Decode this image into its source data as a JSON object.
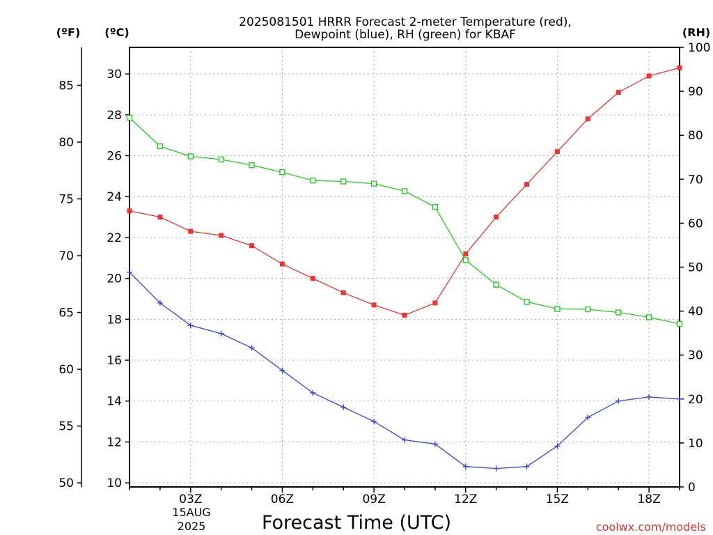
{
  "chart_data": {
    "type": "line",
    "title_line1": "2025081501 HRRR Forecast 2-meter Temperature (red),",
    "title_line2": "Dewpoint (blue), RH (green) for KBAF",
    "xlabel": "Forecast Time (UTC)",
    "left_outer_unit": "(ºF)",
    "left_inner_unit": "(ºC)",
    "right_unit": "(RH)",
    "x_tick_labels": [
      "03Z",
      "06Z",
      "09Z",
      "12Z",
      "15Z",
      "18Z"
    ],
    "date_label": "15AUG",
    "year_label": "2025",
    "x": [
      1,
      2,
      3,
      4,
      5,
      6,
      7,
      8,
      9,
      10,
      11,
      12,
      13,
      14,
      15,
      16,
      17,
      18,
      19
    ],
    "xlim": [
      1,
      19
    ],
    "ylim_c": [
      9.8,
      31.3
    ],
    "y_ticks_c": [
      "10",
      "12",
      "14",
      "16",
      "18",
      "20",
      "22",
      "24",
      "26",
      "28",
      "30"
    ],
    "y_ticks_f": [
      "50",
      "55",
      "60",
      "65",
      "70",
      "75",
      "80",
      "85"
    ],
    "y_ticks_rh": [
      "0",
      "10",
      "20",
      "30",
      "40",
      "50",
      "60",
      "70",
      "80",
      "90",
      "100"
    ],
    "ylim_rh": [
      0,
      100
    ],
    "grid": true,
    "series": [
      {
        "name": "Temperature",
        "axis": "C",
        "color": "#ee3333",
        "marker": "filled-square",
        "values": [
          23.3,
          23.0,
          22.3,
          22.1,
          21.6,
          20.7,
          20.0,
          19.3,
          18.7,
          18.2,
          18.8,
          21.2,
          23.0,
          24.6,
          26.2,
          27.8,
          29.1,
          29.9,
          30.3
        ]
      },
      {
        "name": "Dewpoint",
        "axis": "C",
        "color": "#3344dd",
        "marker": "plus",
        "values": [
          20.3,
          18.8,
          17.7,
          17.3,
          16.6,
          15.5,
          14.4,
          13.7,
          13.0,
          12.1,
          11.9,
          10.8,
          10.7,
          10.8,
          11.8,
          13.2,
          14.0,
          14.2,
          14.1
        ]
      },
      {
        "name": "RH",
        "axis": "RH",
        "color": "#22cc22",
        "marker": "open-square",
        "values": [
          84.0,
          77.5,
          75.2,
          74.5,
          73.2,
          71.6,
          69.7,
          69.5,
          69.0,
          67.3,
          63.7,
          51.6,
          46.0,
          42.1,
          40.5,
          40.4,
          39.7,
          38.6,
          37.1
        ]
      }
    ]
  },
  "watermark": "coolwx.com/models"
}
